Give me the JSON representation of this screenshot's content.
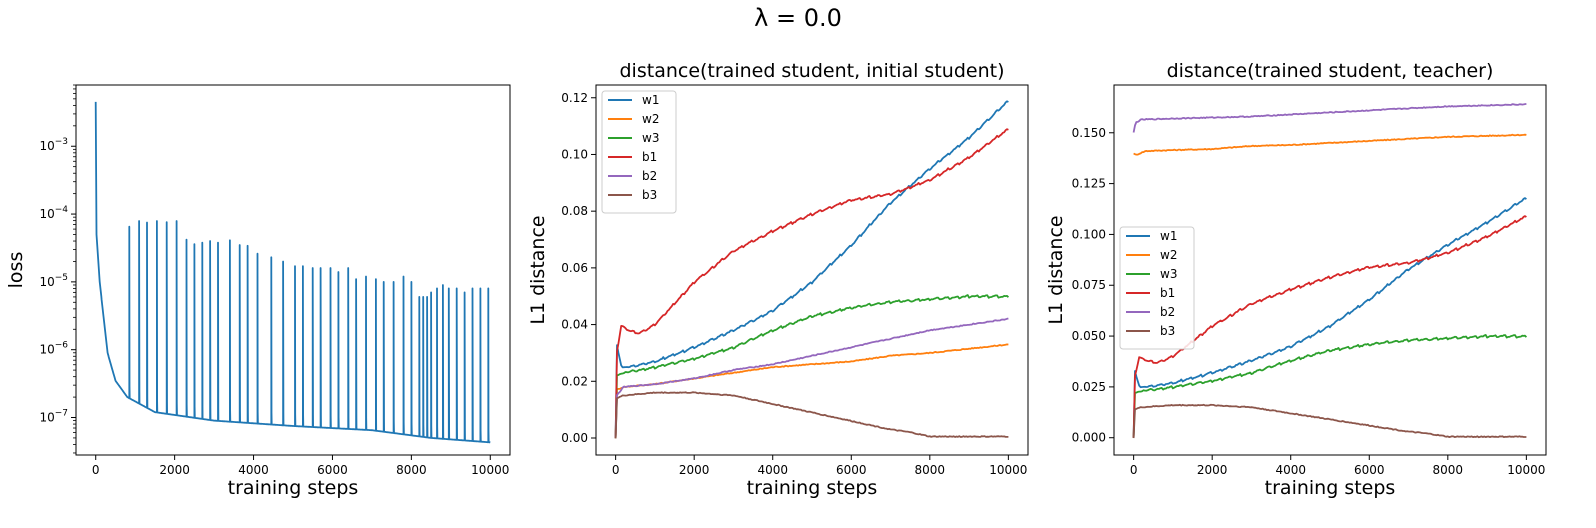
{
  "figure": {
    "suptitle": "λ = 0.0",
    "colors": {
      "w1": "#1f77b4",
      "w2": "#ff7f0e",
      "w3": "#2ca02c",
      "b1": "#d62728",
      "b2": "#9467bd",
      "b3": "#8c564b"
    }
  },
  "chart_data": [
    {
      "type": "line",
      "title": "",
      "xlabel": "training steps",
      "ylabel": "loss",
      "yscale": "log",
      "xlim": [
        -500,
        10500
      ],
      "ylim": [
        2.8e-08,
        0.008
      ],
      "xticks": [
        0,
        2000,
        4000,
        6000,
        8000,
        10000
      ],
      "xtick_labels": [
        "0",
        "2000",
        "4000",
        "6000",
        "8000",
        "10000"
      ],
      "yticks": [
        1e-07,
        1e-06,
        1e-05,
        0.0001,
        0.001
      ],
      "ytick_labels": [
        "10^-7",
        "10^-6",
        "10^-5",
        "10^-4",
        "10^-3"
      ],
      "series": [
        {
          "name": "loss",
          "color": "#1f77b4",
          "baseline": [
            [
              0,
              0.0045
            ],
            [
              20,
              5e-05
            ],
            [
              100,
              1e-05
            ],
            [
              300,
              9e-07
            ],
            [
              500,
              3.5e-07
            ],
            [
              800,
              2e-07
            ],
            [
              1500,
              1.2e-07
            ],
            [
              3000,
              9e-08
            ],
            [
              5000,
              7.5e-08
            ],
            [
              7000,
              6.5e-08
            ],
            [
              8500,
              5e-08
            ],
            [
              10000,
              4.3e-08
            ]
          ],
          "spikes": [
            [
              850,
              6.5e-05
            ],
            [
              1100,
              7.9e-05
            ],
            [
              1300,
              7.5e-05
            ],
            [
              1550,
              7.9e-05
            ],
            [
              1800,
              7.6e-05
            ],
            [
              2050,
              7.9e-05
            ],
            [
              2300,
              4.2e-05
            ],
            [
              2500,
              3.6e-05
            ],
            [
              2700,
              3.8e-05
            ],
            [
              2900,
              4e-05
            ],
            [
              3100,
              3.8e-05
            ],
            [
              3400,
              4.1e-05
            ],
            [
              3650,
              3.5e-05
            ],
            [
              3850,
              3.4e-05
            ],
            [
              4100,
              2.6e-05
            ],
            [
              4450,
              2.3e-05
            ],
            [
              4750,
              2e-05
            ],
            [
              5050,
              1.7e-05
            ],
            [
              5250,
              1.7e-05
            ],
            [
              5500,
              1.6e-05
            ],
            [
              5700,
              1.6e-05
            ],
            [
              5950,
              1.6e-05
            ],
            [
              6150,
              1.4e-05
            ],
            [
              6400,
              1.6e-05
            ],
            [
              6600,
              1.1e-05
            ],
            [
              6850,
              1.2e-05
            ],
            [
              7100,
              1.1e-05
            ],
            [
              7300,
              1e-05
            ],
            [
              7550,
              1e-05
            ],
            [
              7800,
              1.2e-05
            ],
            [
              8000,
              1e-05
            ],
            [
              8200,
              6e-06
            ],
            [
              8300,
              6e-06
            ],
            [
              8400,
              6e-06
            ],
            [
              8500,
              7e-06
            ],
            [
              8650,
              8e-06
            ],
            [
              8800,
              9e-06
            ],
            [
              8950,
              8e-06
            ],
            [
              9150,
              8e-06
            ],
            [
              9350,
              7e-06
            ],
            [
              9550,
              8e-06
            ],
            [
              9750,
              8e-06
            ],
            [
              9950,
              8e-06
            ]
          ]
        }
      ]
    },
    {
      "type": "line",
      "title": "distance(trained student, initial student)",
      "xlabel": "training steps",
      "ylabel": "L1 distance",
      "xlim": [
        -500,
        10500
      ],
      "ylim": [
        -0.006,
        0.1245
      ],
      "xticks": [
        0,
        2000,
        4000,
        6000,
        8000,
        10000
      ],
      "xtick_labels": [
        "0",
        "2000",
        "4000",
        "6000",
        "8000",
        "10000"
      ],
      "yticks": [
        0,
        0.02,
        0.04,
        0.06,
        0.08,
        0.1,
        0.12
      ],
      "ytick_labels": [
        "0.00",
        "0.02",
        "0.04",
        "0.06",
        "0.08",
        "0.10",
        "0.12"
      ],
      "legend": {
        "loc": "upper-left",
        "entries": [
          "w1",
          "w2",
          "w3",
          "b1",
          "b2",
          "b3"
        ]
      },
      "series": [
        {
          "name": "w1",
          "color": "#1f77b4",
          "step": true,
          "x": [
            0,
            30,
            150,
            300,
            1000,
            2000,
            3000,
            4000,
            5000,
            6000,
            7000,
            8000,
            9000,
            10000
          ],
          "y": [
            0,
            0.033,
            0.025,
            0.025,
            0.027,
            0.032,
            0.038,
            0.045,
            0.055,
            0.068,
            0.083,
            0.095,
            0.106,
            0.119
          ]
        },
        {
          "name": "w2",
          "color": "#ff7f0e",
          "x": [
            0,
            30,
            200,
            1000,
            2000,
            3000,
            4000,
            5000,
            6000,
            7000,
            8000,
            9000,
            10000
          ],
          "y": [
            0,
            0.017,
            0.018,
            0.019,
            0.021,
            0.023,
            0.025,
            0.026,
            0.027,
            0.029,
            0.03,
            0.0315,
            0.033
          ]
        },
        {
          "name": "w3",
          "color": "#2ca02c",
          "step": true,
          "x": [
            0,
            30,
            200,
            1000,
            2000,
            3000,
            4000,
            5000,
            6000,
            7000,
            8000,
            9000,
            10000
          ],
          "y": [
            0,
            0.022,
            0.023,
            0.025,
            0.028,
            0.032,
            0.038,
            0.043,
            0.046,
            0.048,
            0.049,
            0.05,
            0.05
          ]
        },
        {
          "name": "b1",
          "color": "#d62728",
          "step": true,
          "x": [
            0,
            30,
            150,
            300,
            600,
            1000,
            2000,
            3000,
            4000,
            5000,
            6000,
            7000,
            8000,
            9000,
            10000
          ],
          "y": [
            0,
            0.03,
            0.04,
            0.038,
            0.037,
            0.04,
            0.055,
            0.066,
            0.073,
            0.079,
            0.084,
            0.086,
            0.091,
            0.099,
            0.109
          ]
        },
        {
          "name": "b2",
          "color": "#9467bd",
          "x": [
            0,
            30,
            200,
            1000,
            2000,
            3000,
            4000,
            5000,
            6000,
            7000,
            8000,
            9000,
            10000
          ],
          "y": [
            0,
            0.015,
            0.018,
            0.019,
            0.021,
            0.024,
            0.026,
            0.029,
            0.032,
            0.035,
            0.038,
            0.04,
            0.042
          ]
        },
        {
          "name": "b3",
          "color": "#8c564b",
          "x": [
            0,
            30,
            200,
            1000,
            2000,
            3000,
            4000,
            5000,
            6000,
            7000,
            7500,
            8000,
            8500,
            9000,
            10000
          ],
          "y": [
            0,
            0.014,
            0.015,
            0.016,
            0.016,
            0.015,
            0.012,
            0.009,
            0.006,
            0.003,
            0.002,
            0.0005,
            0.0005,
            0.0005,
            0.0005
          ]
        }
      ]
    },
    {
      "type": "line",
      "title": "distance(trained student, teacher)",
      "xlabel": "training steps",
      "ylabel": "L1 distance",
      "xlim": [
        -500,
        10500
      ],
      "ylim": [
        -0.0085,
        0.1735
      ],
      "xticks": [
        0,
        2000,
        4000,
        6000,
        8000,
        10000
      ],
      "xtick_labels": [
        "0",
        "2000",
        "4000",
        "6000",
        "8000",
        "10000"
      ],
      "yticks": [
        0,
        0.025,
        0.05,
        0.075,
        0.1,
        0.125,
        0.15
      ],
      "ytick_labels": [
        "0.000",
        "0.025",
        "0.050",
        "0.075",
        "0.100",
        "0.125",
        "0.150"
      ],
      "legend": {
        "loc": "center-left",
        "entries": [
          "w1",
          "w2",
          "w3",
          "b1",
          "b2",
          "b3"
        ]
      },
      "series": [
        {
          "name": "w1",
          "color": "#1f77b4",
          "step": true,
          "x": [
            0,
            30,
            150,
            300,
            1000,
            2000,
            3000,
            4000,
            5000,
            6000,
            7000,
            8000,
            9000,
            10000
          ],
          "y": [
            0,
            0.033,
            0.025,
            0.025,
            0.027,
            0.032,
            0.038,
            0.045,
            0.055,
            0.068,
            0.083,
            0.095,
            0.106,
            0.118
          ]
        },
        {
          "name": "w2",
          "color": "#ff7f0e",
          "x": [
            0,
            50,
            300,
            1000,
            2000,
            3000,
            4000,
            5000,
            6000,
            7000,
            8000,
            9000,
            10000
          ],
          "y": [
            0.14,
            0.139,
            0.141,
            0.1415,
            0.142,
            0.1435,
            0.144,
            0.145,
            0.146,
            0.147,
            0.148,
            0.1485,
            0.149
          ]
        },
        {
          "name": "w3",
          "color": "#2ca02c",
          "step": true,
          "x": [
            0,
            30,
            200,
            1000,
            2000,
            3000,
            4000,
            5000,
            6000,
            7000,
            8000,
            9000,
            10000
          ],
          "y": [
            0,
            0.022,
            0.023,
            0.025,
            0.028,
            0.032,
            0.038,
            0.043,
            0.046,
            0.048,
            0.049,
            0.05,
            0.05
          ]
        },
        {
          "name": "b1",
          "color": "#d62728",
          "step": true,
          "x": [
            0,
            30,
            150,
            300,
            600,
            1000,
            2000,
            3000,
            4000,
            5000,
            6000,
            7000,
            8000,
            9000,
            10000
          ],
          "y": [
            0,
            0.03,
            0.04,
            0.038,
            0.037,
            0.04,
            0.055,
            0.066,
            0.073,
            0.079,
            0.084,
            0.086,
            0.091,
            0.099,
            0.109
          ]
        },
        {
          "name": "b2",
          "color": "#9467bd",
          "x": [
            0,
            50,
            200,
            1000,
            2000,
            3000,
            4000,
            5000,
            6000,
            7000,
            8000,
            9000,
            10000
          ],
          "y": [
            0.15,
            0.155,
            0.1565,
            0.157,
            0.1575,
            0.158,
            0.159,
            0.16,
            0.161,
            0.162,
            0.163,
            0.1635,
            0.164
          ]
        },
        {
          "name": "b3",
          "color": "#8c564b",
          "x": [
            0,
            30,
            200,
            1000,
            2000,
            3000,
            4000,
            5000,
            6000,
            7000,
            7500,
            8000,
            8500,
            9000,
            10000
          ],
          "y": [
            0,
            0.014,
            0.015,
            0.016,
            0.016,
            0.015,
            0.012,
            0.009,
            0.006,
            0.003,
            0.002,
            0.0005,
            0.0005,
            0.0005,
            0.0005
          ]
        }
      ]
    }
  ]
}
